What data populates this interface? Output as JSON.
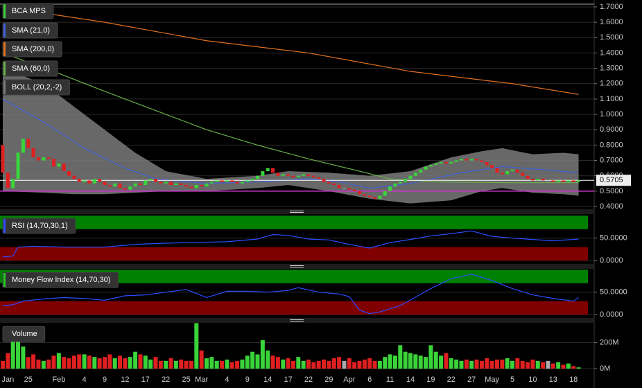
{
  "chart_data": [
    {
      "type": "candlestick",
      "name": "BCA MPS",
      "up_color": "#3ad43a",
      "down_color": "#e02020",
      "flat_color": "#aaaaaa",
      "categories": [
        null,
        "Jan",
        null,
        null,
        null,
        "25",
        null,
        null,
        null,
        null,
        null,
        "Feb",
        null,
        null,
        null,
        null,
        "4",
        null,
        null,
        null,
        "9",
        null,
        null,
        null,
        "12",
        null,
        null,
        null,
        "17",
        null,
        null,
        null,
        "22",
        null,
        null,
        null,
        "25",
        null,
        null,
        "Mar",
        null,
        null,
        null,
        null,
        "4",
        null,
        null,
        null,
        "9",
        null,
        null,
        null,
        "14",
        null,
        null,
        null,
        "17",
        null,
        null,
        null,
        "22",
        null,
        null,
        null,
        "29",
        null,
        null,
        null,
        "Apr",
        null,
        null,
        null,
        "6",
        null,
        null,
        null,
        "11",
        null,
        null,
        null,
        "14",
        null,
        null,
        null,
        "19",
        null,
        null,
        null,
        "22",
        null,
        null,
        null,
        "27",
        null,
        null,
        null,
        "May",
        null,
        null,
        null,
        "5",
        null,
        null,
        null,
        "10",
        null,
        null,
        null,
        "13",
        null,
        null,
        null,
        "18",
        null
      ],
      "open": [
        0.8,
        0.62,
        0.52,
        0.58,
        0.75,
        0.84,
        0.78,
        0.72,
        0.7,
        0.72,
        0.71,
        0.66,
        0.68,
        0.63,
        0.6,
        0.58,
        0.56,
        0.57,
        0.55,
        0.58,
        0.56,
        0.54,
        0.53,
        0.55,
        0.52,
        0.51,
        0.53,
        0.55,
        0.54,
        0.57,
        0.58,
        0.56,
        0.55,
        0.56,
        0.54,
        0.55,
        0.54,
        0.53,
        0.52,
        0.54,
        0.53,
        0.55,
        0.56,
        0.57,
        0.56,
        0.57,
        0.56,
        0.55,
        0.56,
        0.57,
        0.58,
        0.6,
        0.63,
        0.65,
        0.62,
        0.6,
        0.61,
        0.6,
        0.59,
        0.6,
        0.61,
        0.6,
        0.59,
        0.58,
        0.56,
        0.55,
        0.54,
        0.52,
        0.52,
        0.51,
        0.5,
        0.48,
        0.47,
        0.46,
        0.45,
        0.47,
        0.5,
        0.53,
        0.55,
        0.56,
        0.58,
        0.6,
        0.62,
        0.64,
        0.66,
        0.67,
        0.68,
        0.69,
        0.68,
        0.69,
        0.7,
        0.71,
        0.7,
        0.71,
        0.7,
        0.69,
        0.67,
        0.65,
        0.62,
        0.61,
        0.63,
        0.64,
        0.62,
        0.6,
        0.58,
        0.57,
        0.58,
        0.57,
        0.57,
        0.56,
        0.57,
        0.56,
        0.57,
        0.56
      ],
      "close": [
        0.62,
        0.52,
        0.58,
        0.75,
        0.84,
        0.78,
        0.72,
        0.7,
        0.72,
        0.71,
        0.66,
        0.68,
        0.63,
        0.6,
        0.58,
        0.56,
        0.57,
        0.55,
        0.58,
        0.56,
        0.54,
        0.53,
        0.55,
        0.52,
        0.51,
        0.53,
        0.55,
        0.54,
        0.57,
        0.58,
        0.56,
        0.55,
        0.56,
        0.54,
        0.55,
        0.54,
        0.53,
        0.52,
        0.54,
        0.53,
        0.55,
        0.56,
        0.57,
        0.56,
        0.57,
        0.56,
        0.55,
        0.56,
        0.57,
        0.58,
        0.6,
        0.63,
        0.65,
        0.62,
        0.6,
        0.61,
        0.6,
        0.59,
        0.6,
        0.61,
        0.6,
        0.59,
        0.58,
        0.56,
        0.55,
        0.54,
        0.52,
        0.52,
        0.51,
        0.5,
        0.48,
        0.47,
        0.46,
        0.45,
        0.47,
        0.5,
        0.53,
        0.55,
        0.56,
        0.58,
        0.6,
        0.62,
        0.64,
        0.66,
        0.67,
        0.68,
        0.69,
        0.68,
        0.69,
        0.7,
        0.71,
        0.7,
        0.71,
        0.7,
        0.69,
        0.67,
        0.65,
        0.62,
        0.61,
        0.63,
        0.64,
        0.62,
        0.6,
        0.58,
        0.57,
        0.58,
        0.57,
        0.57,
        0.56,
        0.57,
        0.56,
        0.57,
        0.56,
        0.5705
      ],
      "ylim": [
        0.382,
        1.736
      ],
      "yticks": [
        {
          "value": 1.7,
          "label": "1.7000"
        },
        {
          "value": 1.6,
          "label": "1.6000"
        },
        {
          "value": 1.5,
          "label": "1.5000"
        },
        {
          "value": 1.4,
          "label": "1.4000"
        },
        {
          "value": 1.3,
          "label": "1.3000"
        },
        {
          "value": 1.2,
          "label": "1.2000"
        },
        {
          "value": 1.1,
          "label": "1.1000"
        },
        {
          "value": 1.0,
          "label": "1.0000"
        },
        {
          "value": 0.9,
          "label": "0.9000"
        },
        {
          "value": 0.8,
          "label": "0.8000"
        },
        {
          "value": 0.7,
          "label": "0.7000"
        },
        {
          "value": 0.6,
          "label": "0.6000"
        },
        {
          "value": 0.5,
          "label": "0.5000"
        },
        {
          "value": 0.4,
          "label": "0.4000"
        }
      ],
      "grid": true,
      "reference_line": {
        "value": 0.5,
        "color": "#cc33cc"
      },
      "last_line_color": "#ffffff",
      "overlays": [
        {
          "type": "line",
          "name": "SMA (21,0)",
          "color": "#4060d8",
          "x": [
            0,
            8,
            16,
            24,
            30,
            40,
            50,
            60,
            66,
            72,
            80,
            90,
            98,
            106,
            113
          ],
          "values": [
            1.1,
            0.95,
            0.78,
            0.65,
            0.58,
            0.55,
            0.56,
            0.58,
            0.56,
            0.52,
            0.55,
            0.62,
            0.66,
            0.64,
            0.62
          ]
        },
        {
          "type": "line",
          "name": "SMA (200,0)",
          "color": "#e07020",
          "x": [
            0,
            20,
            40,
            60,
            80,
            100,
            113
          ],
          "values": [
            1.7,
            1.6,
            1.48,
            1.4,
            1.28,
            1.2,
            1.13
          ]
        },
        {
          "type": "line",
          "name": "SMA (60,0)",
          "color": "#6ab04c",
          "x": [
            0,
            10,
            20,
            40,
            50,
            60,
            70,
            76,
            85,
            100,
            113
          ],
          "values": [
            1.4,
            1.28,
            1.15,
            0.9,
            0.8,
            0.71,
            0.63,
            0.58,
            0.56,
            0.555,
            0.555
          ]
        },
        {
          "type": "band",
          "name": "BOLL (20,2,-2)",
          "color": "#7a7a7a",
          "x": [
            0,
            8,
            14,
            20,
            26,
            32,
            40,
            50,
            56,
            64,
            72,
            80,
            88,
            94,
            98,
            104,
            110,
            113
          ],
          "upper": [
            1.3,
            1.2,
            1.05,
            0.9,
            0.75,
            0.63,
            0.58,
            0.6,
            0.63,
            0.62,
            0.6,
            0.63,
            0.72,
            0.76,
            0.78,
            0.74,
            0.75,
            0.74
          ],
          "lower": [
            0.5,
            0.49,
            0.48,
            0.48,
            0.49,
            0.5,
            0.5,
            0.52,
            0.54,
            0.5,
            0.45,
            0.42,
            0.44,
            0.5,
            0.52,
            0.49,
            0.48,
            0.47
          ]
        }
      ]
    },
    {
      "type": "line",
      "title": "RSI (14,70,30,1)",
      "color": "#2e4cff",
      "legend_color": "#2e4cff",
      "x": [
        0,
        2,
        3,
        6,
        12,
        20,
        26,
        30,
        36,
        44,
        50,
        53,
        56,
        60,
        64,
        68,
        72,
        76,
        80,
        84,
        88,
        92,
        96,
        100,
        104,
        108,
        113
      ],
      "values": [
        8,
        10,
        30,
        32,
        30,
        30,
        36,
        38,
        40,
        42,
        48,
        58,
        56,
        48,
        46,
        36,
        28,
        40,
        47,
        55,
        60,
        66,
        54,
        50,
        47,
        44,
        48
      ],
      "ylim": [
        -7.6,
        100.5
      ],
      "yticks": [
        {
          "value": 50,
          "label": "50.0000"
        },
        {
          "value": 0,
          "label": "0.0000"
        }
      ],
      "upper_zone": {
        "from": 70,
        "to": 100,
        "color": "#008000"
      },
      "lower_zone": {
        "from": 0,
        "to": 30,
        "color": "#800000"
      }
    },
    {
      "type": "line",
      "title": "Money Flow Index (14,70,30)",
      "color": "#2e4cff",
      "legend_color": "#22cc22",
      "x": [
        0,
        2,
        4,
        8,
        12,
        16,
        20,
        24,
        28,
        32,
        36,
        40,
        44,
        48,
        52,
        56,
        58,
        62,
        66,
        68,
        70,
        72,
        74,
        78,
        84,
        88,
        92,
        96,
        100,
        104,
        108,
        112,
        113
      ],
      "values": [
        20,
        22,
        30,
        35,
        38,
        36,
        32,
        42,
        44,
        50,
        56,
        38,
        52,
        52,
        50,
        54,
        60,
        50,
        46,
        40,
        10,
        2,
        6,
        20,
        58,
        80,
        90,
        76,
        58,
        44,
        36,
        30,
        38
      ],
      "ylim": [
        -7.6,
        100.5
      ],
      "yticks": [
        {
          "value": 50,
          "label": "50.0000"
        },
        {
          "value": 0,
          "label": "0.0000"
        }
      ],
      "upper_zone": {
        "from": 70,
        "to": 100,
        "color": "#008000"
      },
      "lower_zone": {
        "from": 0,
        "to": 30,
        "color": "#800000"
      }
    },
    {
      "type": "bar",
      "title": "Volume",
      "values": [
        60,
        120,
        230,
        220,
        170,
        90,
        110,
        70,
        60,
        70,
        100,
        120,
        90,
        80,
        100,
        110,
        110,
        100,
        90,
        80,
        90,
        110,
        80,
        100,
        80,
        90,
        130,
        110,
        100,
        70,
        90,
        60,
        60,
        80,
        60,
        70,
        60,
        60,
        350,
        140,
        80,
        90,
        60,
        60,
        70,
        50,
        60,
        70,
        100,
        130,
        110,
        220,
        140,
        100,
        90,
        70,
        80,
        60,
        90,
        60,
        70,
        50,
        60,
        70,
        60,
        80,
        90,
        60,
        80,
        50,
        60,
        70,
        80,
        60,
        60,
        90,
        110,
        100,
        180,
        130,
        120,
        110,
        100,
        90,
        180,
        130,
        100,
        120,
        80,
        70,
        60,
        70,
        60,
        70,
        60,
        80,
        60,
        70,
        70,
        80,
        60,
        80,
        60,
        50,
        70,
        60,
        50,
        60,
        40,
        50,
        30,
        40,
        20,
        10
      ],
      "ylim": [
        -42,
        352
      ],
      "yticks": [
        {
          "value": 200,
          "label": "200M"
        },
        {
          "value": 0,
          "label": "0M"
        }
      ]
    }
  ]
}
